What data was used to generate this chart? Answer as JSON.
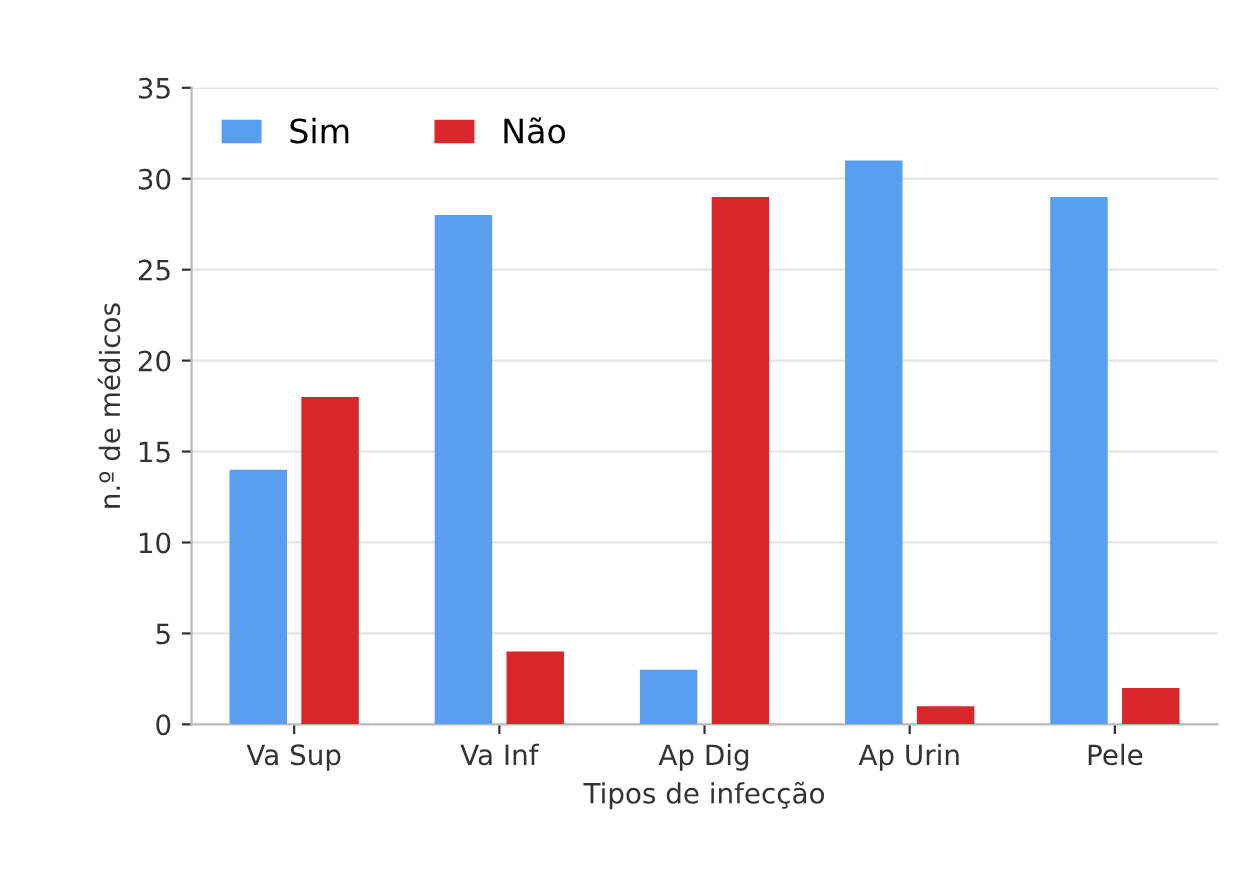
{
  "chart_data": {
    "type": "bar",
    "xlabel": "Tipos de infecção",
    "ylabel": "n.º de médicos",
    "categories": [
      "Va Sup",
      "Va Inf",
      "Ap Dig",
      "Ap Urin",
      "Pele"
    ],
    "series": [
      {
        "name": "Sim",
        "color": "#5a9ef0",
        "values": [
          14,
          28,
          3,
          31,
          29
        ]
      },
      {
        "name": "Não",
        "color": "#d9262b",
        "values": [
          18,
          4,
          29,
          1,
          2
        ]
      }
    ],
    "ylim": [
      0,
      35
    ],
    "yticks": [
      0,
      5,
      10,
      15,
      20,
      25,
      30,
      35
    ],
    "grid": "y",
    "legend": "top left"
  }
}
